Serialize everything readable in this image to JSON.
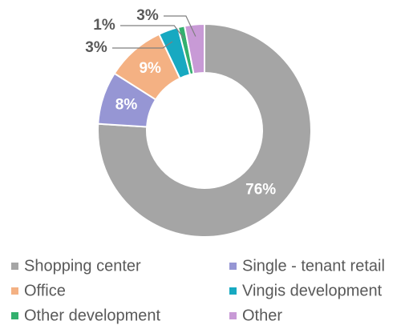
{
  "chart_data": {
    "type": "donut",
    "categories": [
      "Shopping center",
      "Single - tenant retail",
      "Office",
      "Vingis development",
      "Other development",
      "Other"
    ],
    "values": [
      76,
      8,
      9,
      3,
      1,
      3
    ],
    "value_labels": [
      "76%",
      "8%",
      "9%",
      "3%",
      "1%",
      "3%"
    ],
    "colors": [
      "#a5a5a5",
      "#9696d4",
      "#f4b183",
      "#17a9c1",
      "#33b06e",
      "#c89ad6"
    ],
    "legend": "bottom"
  }
}
